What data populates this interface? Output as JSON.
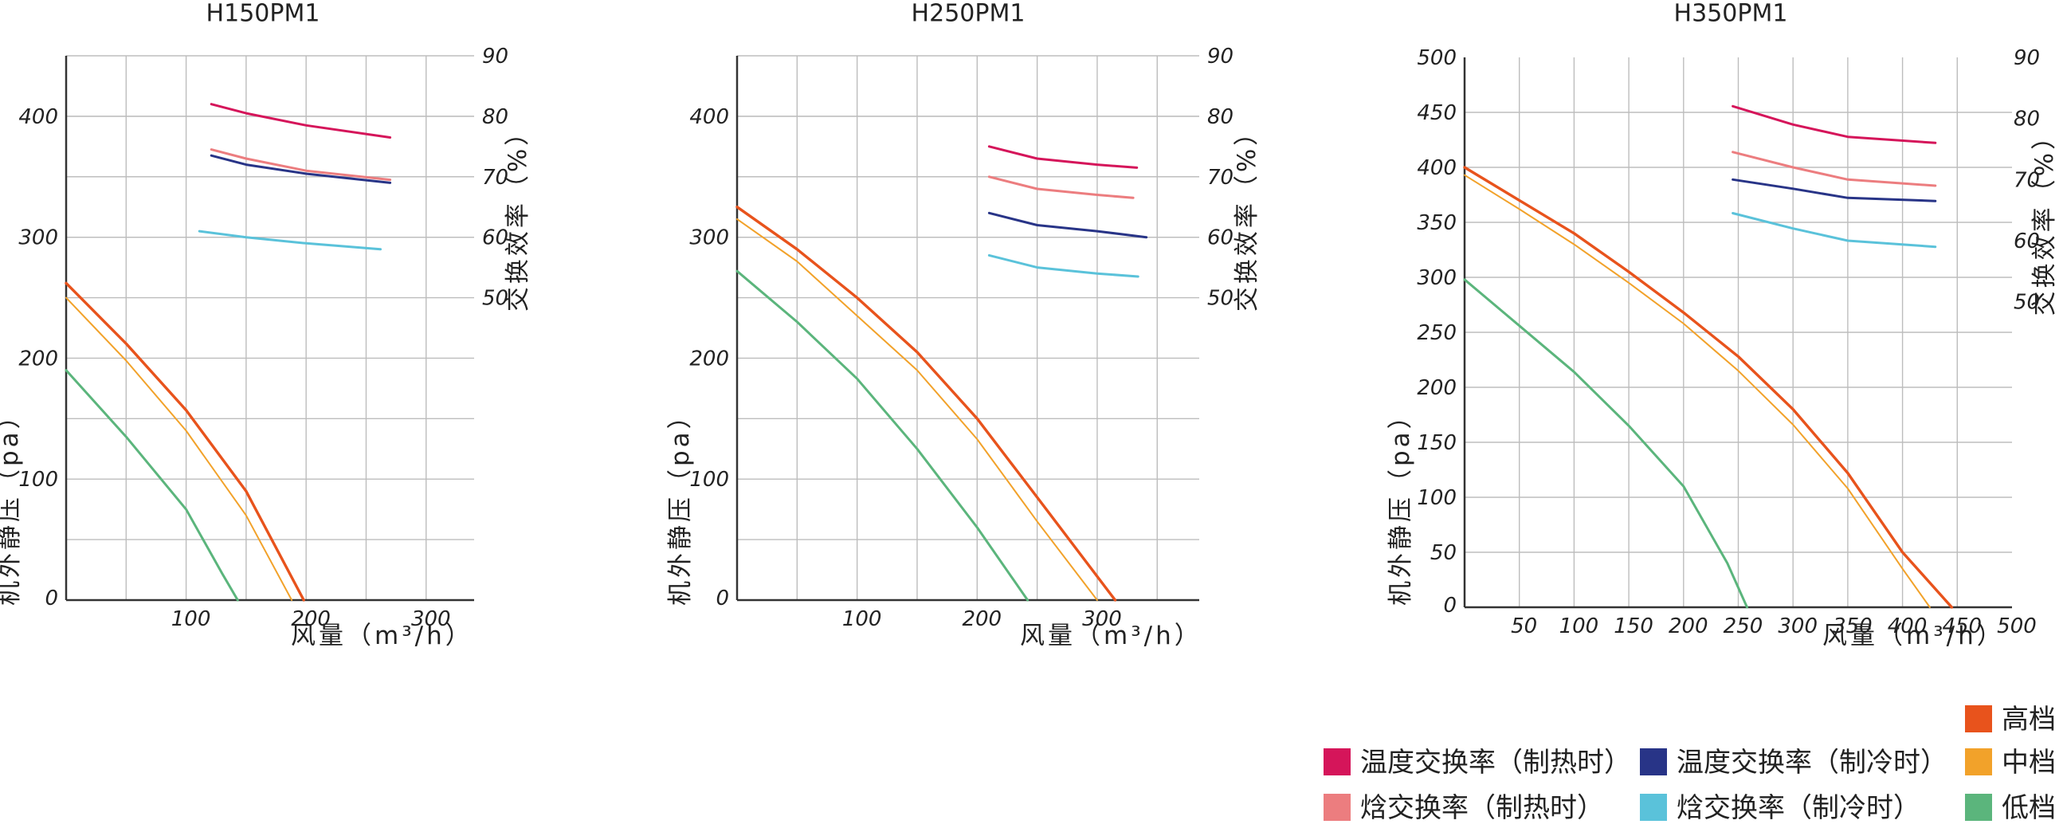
{
  "chart_data": [
    {
      "type": "line",
      "title": "H150PM1",
      "xlabel": "风量（m³/h）",
      "ylabel": "机外静压（pa）",
      "y2label": "交换效率（%）",
      "xlim": [
        0,
        340
      ],
      "ylim": [
        0,
        450
      ],
      "y2lim": [
        0,
        90
      ],
      "xticks": [
        100,
        200,
        300
      ],
      "yticks": [
        0,
        100,
        200,
        300,
        400
      ],
      "y2ticks": [
        50,
        60,
        70,
        80,
        90
      ],
      "grid": true,
      "pressure_series": [
        {
          "key": "high",
          "points": [
            [
              0,
              262
            ],
            [
              50,
              212
            ],
            [
              100,
              157
            ],
            [
              150,
              90
            ],
            [
              198,
              0
            ]
          ]
        },
        {
          "key": "mid",
          "points": [
            [
              0,
              250
            ],
            [
              50,
              198
            ],
            [
              100,
              140
            ],
            [
              150,
              70
            ],
            [
              188,
              0
            ]
          ]
        },
        {
          "key": "low",
          "points": [
            [
              0,
              190
            ],
            [
              50,
              135
            ],
            [
              100,
              75
            ],
            [
              130,
              22
            ],
            [
              143,
              0
            ]
          ]
        }
      ],
      "efficiency_series": [
        {
          "key": "temp_heat",
          "points": [
            [
              121,
              82
            ],
            [
              150,
              80.5
            ],
            [
              200,
              78.5
            ],
            [
              270,
              76.5
            ]
          ]
        },
        {
          "key": "enth_heat",
          "points": [
            [
              121,
              74.5
            ],
            [
              150,
              73
            ],
            [
              200,
              71
            ],
            [
              270,
              69.5
            ]
          ]
        },
        {
          "key": "temp_cool",
          "points": [
            [
              121,
              73.5
            ],
            [
              150,
              72
            ],
            [
              200,
              70.5
            ],
            [
              270,
              69
            ]
          ]
        },
        {
          "key": "enth_cool",
          "points": [
            [
              111,
              61
            ],
            [
              150,
              60
            ],
            [
              200,
              59
            ],
            [
              262,
              58
            ]
          ]
        }
      ]
    },
    {
      "type": "line",
      "title": "H250PM1",
      "xlabel": "风量（m³/h）",
      "ylabel": "机外静压（pa）",
      "y2label": "交换效率（%）",
      "xlim": [
        0,
        385
      ],
      "ylim": [
        0,
        450
      ],
      "y2lim": [
        0,
        90
      ],
      "xticks": [
        100,
        200,
        300
      ],
      "yticks": [
        0,
        100,
        200,
        300,
        400
      ],
      "y2ticks": [
        50,
        60,
        70,
        80,
        90
      ],
      "grid": true,
      "pressure_series": [
        {
          "key": "high",
          "points": [
            [
              0,
              325
            ],
            [
              50,
              290
            ],
            [
              100,
              250
            ],
            [
              150,
              205
            ],
            [
              200,
              150
            ],
            [
              250,
              85
            ],
            [
              315,
              0
            ]
          ]
        },
        {
          "key": "mid",
          "points": [
            [
              0,
              315
            ],
            [
              50,
              280
            ],
            [
              100,
              235
            ],
            [
              150,
              190
            ],
            [
              200,
              133
            ],
            [
              250,
              65
            ],
            [
              300,
              0
            ]
          ]
        },
        {
          "key": "low",
          "points": [
            [
              0,
              272
            ],
            [
              50,
              230
            ],
            [
              100,
              183
            ],
            [
              150,
              125
            ],
            [
              200,
              60
            ],
            [
              242,
              0
            ]
          ]
        }
      ],
      "efficiency_series": [
        {
          "key": "temp_heat",
          "points": [
            [
              210,
              75
            ],
            [
              250,
              73
            ],
            [
              300,
              72
            ],
            [
              333,
              71.5
            ]
          ]
        },
        {
          "key": "enth_heat",
          "points": [
            [
              210,
              70
            ],
            [
              250,
              68
            ],
            [
              300,
              67
            ],
            [
              330,
              66.5
            ]
          ]
        },
        {
          "key": "temp_cool",
          "points": [
            [
              210,
              64
            ],
            [
              250,
              62
            ],
            [
              300,
              61
            ],
            [
              341,
              60
            ]
          ]
        },
        {
          "key": "enth_cool",
          "points": [
            [
              210,
              57
            ],
            [
              250,
              55
            ],
            [
              300,
              54
            ],
            [
              334,
              53.5
            ]
          ]
        }
      ]
    },
    {
      "type": "line",
      "title": "H350PM1",
      "xlabel": "风量（m³/h）",
      "ylabel": "机外静压（pa）",
      "y2label": "交换效率（%）",
      "xlim": [
        0,
        500
      ],
      "ylim": [
        0,
        500
      ],
      "y2lim": [
        0,
        90
      ],
      "xticks": [
        50,
        100,
        150,
        200,
        250,
        300,
        350,
        400,
        450,
        500
      ],
      "yticks": [
        0,
        50,
        100,
        150,
        200,
        250,
        300,
        350,
        400,
        450,
        500
      ],
      "y2ticks": [
        50,
        60,
        70,
        80,
        90
      ],
      "grid": true,
      "pressure_series": [
        {
          "key": "high",
          "points": [
            [
              0,
              400
            ],
            [
              50,
              370
            ],
            [
              100,
              340
            ],
            [
              150,
              305
            ],
            [
              200,
              268
            ],
            [
              250,
              228
            ],
            [
              300,
              180
            ],
            [
              350,
              122
            ],
            [
              400,
              50
            ],
            [
              445,
              0
            ]
          ]
        },
        {
          "key": "mid",
          "points": [
            [
              0,
              393
            ],
            [
              50,
              362
            ],
            [
              100,
              330
            ],
            [
              150,
              295
            ],
            [
              200,
              258
            ],
            [
              250,
              215
            ],
            [
              300,
              166
            ],
            [
              350,
              108
            ],
            [
              400,
              35
            ],
            [
              425,
              0
            ]
          ]
        },
        {
          "key": "low",
          "points": [
            [
              0,
              298
            ],
            [
              50,
              256
            ],
            [
              100,
              214
            ],
            [
              150,
              165
            ],
            [
              200,
              110
            ],
            [
              240,
              40
            ],
            [
              258,
              0
            ]
          ]
        }
      ],
      "efficiency_series": [
        {
          "key": "temp_heat",
          "points": [
            [
              245,
              82
            ],
            [
              300,
              79
            ],
            [
              350,
              77
            ],
            [
              430,
              76
            ]
          ]
        },
        {
          "key": "enth_heat",
          "points": [
            [
              245,
              74.5
            ],
            [
              300,
              72
            ],
            [
              350,
              70
            ],
            [
              430,
              69
            ]
          ]
        },
        {
          "key": "temp_cool",
          "points": [
            [
              245,
              70
            ],
            [
              300,
              68.5
            ],
            [
              350,
              67
            ],
            [
              430,
              66.5
            ]
          ]
        },
        {
          "key": "enth_cool",
          "points": [
            [
              245,
              64.5
            ],
            [
              300,
              62
            ],
            [
              350,
              60
            ],
            [
              430,
              59
            ]
          ]
        }
      ]
    }
  ],
  "series_styles": {
    "high": {
      "label": "高档",
      "color": "#e8531c",
      "width": 3.4
    },
    "mid": {
      "label": "中档",
      "color": "#f2a22a",
      "width": 2.0
    },
    "low": {
      "label": "低档",
      "color": "#5bb57c",
      "width": 3.0
    },
    "temp_heat": {
      "label": "温度交换率（制热时）",
      "color": "#d5155a",
      "width": 3.0
    },
    "enth_heat": {
      "label": "焓交换率（制热时）",
      "color": "#ec7d7f",
      "width": 3.0
    },
    "temp_cool": {
      "label": "温度交换率（制冷时）",
      "color": "#283487",
      "width": 3.0
    },
    "enth_cool": {
      "label": "焓交换率（制冷时）",
      "color": "#5ac2da",
      "width": 3.0
    }
  },
  "legend_order": [
    "temp_heat",
    "enth_heat",
    "temp_cool",
    "enth_cool",
    "high",
    "mid",
    "low"
  ]
}
